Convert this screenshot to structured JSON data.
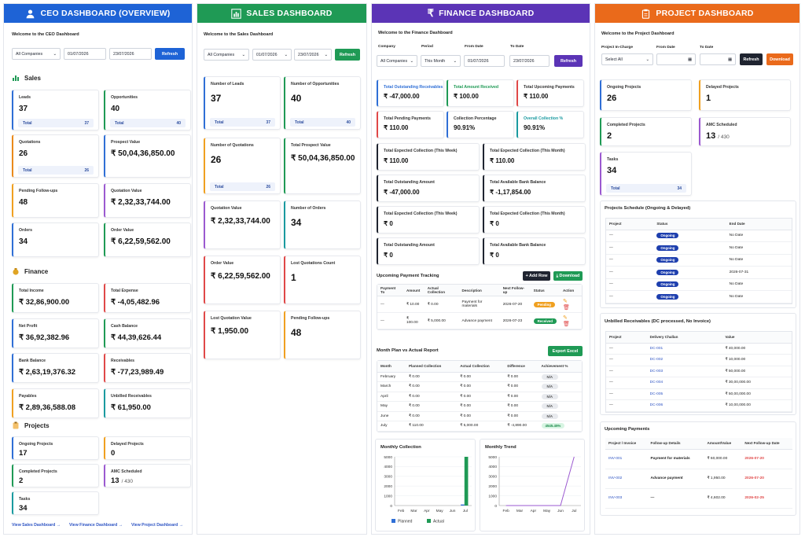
{
  "colors": {
    "ceo": "#1e63d6",
    "sales": "#1f9a55",
    "finance": "#5b34b6",
    "project": "#ea6a1b"
  },
  "ceo": {
    "title": "CEO DASHBOARD (OVERVIEW)",
    "welcome": "Welcome to the CEO Dashboard",
    "company": "All Companies",
    "from": "01/07/2026",
    "to": "23/07/2026",
    "refresh": "Refresh",
    "sales_title": "Sales",
    "finance_title": "Finance",
    "projects_title": "Projects",
    "sales": [
      {
        "label": "Leads",
        "value": "37",
        "total_label": "Total",
        "total": "37"
      },
      {
        "label": "Opportunities",
        "value": "40",
        "total_label": "Total",
        "total": "40"
      },
      {
        "label": "Quotations",
        "value": "26",
        "total_label": "Total",
        "total": "26"
      },
      {
        "label": "Prospect Value",
        "value": "₹ 50,04,36,850.00"
      },
      {
        "label": "Pending Follow-ups",
        "value": "48"
      },
      {
        "label": "Quotation Value",
        "value": "₹ 2,32,33,744.00"
      },
      {
        "label": "Orders",
        "value": "34"
      },
      {
        "label": "Order Value",
        "value": "₹ 6,22,59,562.00"
      }
    ],
    "finance": [
      {
        "label": "Total Income",
        "value": "₹ 32,86,900.00"
      },
      {
        "label": "Total Expense",
        "value": "₹ -4,05,482.96"
      },
      {
        "label": "Net Profit",
        "value": "₹ 36,92,382.96"
      },
      {
        "label": "Cash Balance",
        "value": "₹ 44,39,626.44"
      },
      {
        "label": "Bank Balance",
        "value": "₹ 2,63,19,376.32"
      },
      {
        "label": "Receivables",
        "value": "₹ -77,23,989.49"
      },
      {
        "label": "Payables",
        "value": "₹ 2,89,36,588.08"
      },
      {
        "label": "Unbilled Receivables",
        "value": "₹ 61,950.00"
      }
    ],
    "projects": [
      {
        "label": "Ongoing Projects",
        "value": "17"
      },
      {
        "label": "Delayed Projects",
        "value": "0"
      },
      {
        "label": "Completed Projects",
        "value": "2"
      },
      {
        "label": "AMC Scheduled",
        "value": "13",
        "sub": "/ 430"
      },
      {
        "label": "Tasks",
        "value": "34"
      }
    ],
    "links": [
      "View Sales Dashboard →",
      "View Finance Dashboard →",
      "View Project Dashboard →"
    ]
  },
  "sales": {
    "title": "SALES DASHBOARD",
    "welcome": "Welcome to the Sales Dashboard",
    "company": "All Companies",
    "from": "01/07/2026",
    "to": "23/07/2026",
    "refresh": "Refresh",
    "cards": [
      {
        "label": "Number of Leads",
        "value": "37",
        "total_label": "Total",
        "total": "37"
      },
      {
        "label": "Number of Opportunities",
        "value": "40",
        "total_label": "Total",
        "total": "40"
      },
      {
        "label": "Number of Quotations",
        "value": "26",
        "total_label": "Total",
        "total": "26"
      },
      {
        "label": "Total Prospect Value",
        "value": "₹ 50,04,36,850.00"
      },
      {
        "label": "Quotation Value",
        "value": "₹ 2,32,33,744.00"
      },
      {
        "label": "Number of Orders",
        "value": "34"
      },
      {
        "label": "Order Value",
        "value": "₹ 6,22,59,562.00"
      },
      {
        "label": "Lost Quotations Count",
        "value": "1"
      },
      {
        "label": "Lost Quotation Value",
        "value": "₹ 1,950.00"
      },
      {
        "label": "Pending Follow-ups",
        "value": "48"
      }
    ]
  },
  "finance": {
    "title": "FINANCE DASHBOARD",
    "welcome": "Welcome to the Finance Dashboard",
    "filters": {
      "company_label": "Company",
      "company": "All Companies",
      "period_label": "Period",
      "period": "This Month",
      "from_label": "From Date",
      "from": "01/07/2026",
      "to_label": "To Date",
      "to": "23/07/2026",
      "refresh": "Refresh"
    },
    "top": [
      {
        "label": "Total Outstanding Receivables",
        "value": "₹ -47,000.00",
        "color": "#2f6fd6"
      },
      {
        "label": "Total Amount Received",
        "value": "₹ 100.00",
        "color": "#1f9a55"
      },
      {
        "label": "Total Upcoming Payments",
        "value": "₹ 110.00",
        "color": "#333333"
      },
      {
        "label": "Total Pending Payments",
        "value": "₹ 110.00",
        "color": "#333333"
      },
      {
        "label": "Collection Percentage",
        "value": "90.91%",
        "color": "#333333"
      },
      {
        "label": "Overall Collection %",
        "value": "90.91%",
        "color": "#1a9aa0"
      }
    ],
    "mid": [
      {
        "label": "Total Expected Collection (This Week)",
        "value": "₹ 110.00"
      },
      {
        "label": "Total Expected Collection (This Month)",
        "value": "₹ 110.00"
      },
      {
        "label": "Total Outstanding Amount",
        "value": "₹ -47,000.00"
      },
      {
        "label": "Total Available Bank Balance",
        "value": "₹ -1,17,854.00"
      },
      {
        "label": "Total Expected Collection (This Week)",
        "value": "₹ 0"
      },
      {
        "label": "Total Expected Collection (This Month)",
        "value": "₹ 0"
      },
      {
        "label": "Total Outstanding Amount",
        "value": "₹ 0"
      },
      {
        "label": "Total Available Bank Balance",
        "value": "₹ 0"
      }
    ],
    "upt": {
      "title": "Upcoming Payment Tracking",
      "add": "+ Add Row",
      "download": "⤓ Download",
      "cols": [
        "Payment To",
        "Amount",
        "Actual Collection",
        "Description",
        "Next Follow-up",
        "Status",
        "Action"
      ],
      "rows": [
        {
          "to": "—",
          "amount": "₹ 10.00",
          "actual": "₹ 0.00",
          "desc": "Payment for materials",
          "next": "2026-07-20",
          "status": "Pending",
          "scolor": "#f0a020"
        },
        {
          "to": "—",
          "amount": "₹ 100.00",
          "actual": "₹ 5,000.00",
          "desc": "Advance payment",
          "next": "2026-07-23",
          "status": "Received",
          "scolor": "#1f9a55"
        }
      ]
    },
    "plan": {
      "title": "Month Plan vs Actual Report",
      "export": "Export Excel",
      "cols": [
        "Month",
        "Planned Collection",
        "Actual Collection",
        "Difference",
        "Achievement %"
      ],
      "rows": [
        {
          "m": "February",
          "p": "₹ 0.00",
          "a": "₹ 0.00",
          "d": "₹ 0.00",
          "pct": "N/A"
        },
        {
          "m": "March",
          "p": "₹ 0.00",
          "a": "₹ 0.00",
          "d": "₹ 0.00",
          "pct": "N/A"
        },
        {
          "m": "April",
          "p": "₹ 0.00",
          "a": "₹ 0.00",
          "d": "₹ 0.00",
          "pct": "N/A"
        },
        {
          "m": "May",
          "p": "₹ 0.00",
          "a": "₹ 0.00",
          "d": "₹ 0.00",
          "pct": "N/A"
        },
        {
          "m": "June",
          "p": "₹ 0.00",
          "a": "₹ 0.00",
          "d": "₹ 0.00",
          "pct": "N/A"
        },
        {
          "m": "July",
          "p": "₹ 110.00",
          "a": "₹ 5,000.00",
          "d": "₹ -4,890.00",
          "pct": "4545.45%"
        }
      ]
    }
  },
  "chart_data": [
    {
      "type": "bar",
      "title": "Monthly Collection",
      "categories": [
        "Feb",
        "Mar",
        "Apr",
        "May",
        "Jun",
        "Jul"
      ],
      "series": [
        {
          "name": "Planned",
          "values": [
            0,
            0,
            0,
            0,
            0,
            110
          ],
          "color": "#2f6fd6"
        },
        {
          "name": "Actual",
          "values": [
            0,
            0,
            0,
            0,
            0,
            5000
          ],
          "color": "#1f9a55"
        }
      ],
      "yticks": [
        0,
        1000,
        2000,
        3000,
        4000,
        5000
      ],
      "ylim": [
        0,
        5000
      ],
      "legend": "bottom"
    },
    {
      "type": "line",
      "title": "Monthly Trend",
      "categories": [
        "Feb",
        "Mar",
        "Apr",
        "May",
        "Jun",
        "Jul"
      ],
      "series": [
        {
          "values": [
            0,
            0,
            0,
            0,
            0,
            5000
          ],
          "color": "#9b59d0"
        }
      ],
      "yticks": [
        0,
        1000,
        2000,
        3000,
        4000,
        5000
      ],
      "ylim": [
        0,
        5000
      ]
    }
  ],
  "project": {
    "title": "PROJECT DASHBOARD",
    "welcome": "Welcome to the Project Dashboard",
    "filters": {
      "pic_label": "Project In-Charge",
      "pic": "Select All",
      "from_label": "From Date",
      "to_label": "To Date",
      "refresh": "Refresh",
      "download": "Download"
    },
    "cards": [
      {
        "label": "Ongoing Projects",
        "value": "26"
      },
      {
        "label": "Delayed Projects",
        "value": "1"
      },
      {
        "label": "Completed Projects",
        "value": "2"
      },
      {
        "label": "AMC Scheduled",
        "value": "13",
        "sub": "/ 430"
      },
      {
        "label": "Tasks",
        "value": "34",
        "total_label": "Total",
        "total": "34"
      }
    ],
    "schedule": {
      "title": "Projects Schedule (Ongoing & Delayed)",
      "cols": [
        "Project",
        "Status",
        "End Date"
      ],
      "rows": [
        {
          "p": "—",
          "s": "Ongoing",
          "e": "No Date"
        },
        {
          "p": "—",
          "s": "Ongoing",
          "e": "No Date"
        },
        {
          "p": "—",
          "s": "Ongoing",
          "e": "No Date"
        },
        {
          "p": "—",
          "s": "Ongoing",
          "e": "2026-07-31"
        },
        {
          "p": "—",
          "s": "Ongoing",
          "e": "No Date"
        },
        {
          "p": "—",
          "s": "Ongoing",
          "e": "No Date"
        }
      ]
    },
    "unbilled": {
      "title": "Unbilled Receivables (DC processed, No Invoice)",
      "cols": [
        "Project",
        "Delivery Challan",
        "Value"
      ],
      "rows": [
        {
          "p": "—",
          "dc": "DC-001",
          "v": "₹ 40,000.00"
        },
        {
          "p": "—",
          "dc": "DC-002",
          "v": "₹ 10,000.00"
        },
        {
          "p": "—",
          "dc": "DC-003",
          "v": "₹ 50,000.00"
        },
        {
          "p": "—",
          "dc": "DC-004",
          "v": "₹ 30,00,000.00"
        },
        {
          "p": "—",
          "dc": "DC-005",
          "v": "₹ 50,00,000.00"
        },
        {
          "p": "—",
          "dc": "DC-006",
          "v": "₹ 10,00,000.00"
        }
      ]
    },
    "upcoming": {
      "title": "Upcoming Payments",
      "cols": [
        "Project / Invoice",
        "Follow-up Details",
        "Amount/Value",
        "Next Follow-up Date"
      ],
      "rows": [
        {
          "inv": "INV-001",
          "d": "Payment for materials",
          "a": "₹ 60,000.00",
          "n": "2026-07-20"
        },
        {
          "inv": "INV-002",
          "d": "Advance payment",
          "a": "₹ 1,950.00",
          "n": "2026-07-20"
        },
        {
          "inv": "INV-003",
          "d": "—",
          "a": "₹ 4,602.00",
          "n": "2026-02-25"
        }
      ]
    }
  }
}
